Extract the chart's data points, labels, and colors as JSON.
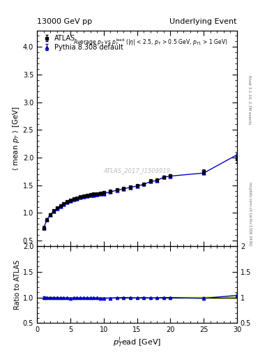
{
  "title_left": "13000 GeV pp",
  "title_right": "Underlying Event",
  "watermark": "ATLAS_2017_I1509919",
  "right_label": "mcplots.cern.ch [arXiv:1306.3436]",
  "rivet_label": "Rivet 3.1.10, 2.3M events",
  "ylabel_main": "$\\langle$ mean $p_T$ $\\rangle$ [GeV]",
  "ylabel_ratio": "Ratio to ATLAS",
  "xlabel": "$p_T^l$ead [GeV]",
  "ylim_main": [
    0.4,
    4.3
  ],
  "ylim_ratio": [
    0.5,
    2.0
  ],
  "xlim": [
    0,
    30
  ],
  "yticks_main": [
    0.5,
    1.0,
    1.5,
    2.0,
    2.5,
    3.0,
    3.5,
    4.0
  ],
  "yticks_ratio": [
    0.5,
    1.0,
    1.5,
    2.0
  ],
  "xticks": [
    0,
    5,
    10,
    15,
    20,
    25,
    30
  ],
  "data_x": [
    1.0,
    1.5,
    2.0,
    2.5,
    3.0,
    3.5,
    4.0,
    4.5,
    5.0,
    5.5,
    6.0,
    6.5,
    7.0,
    7.5,
    8.0,
    8.5,
    9.0,
    9.5,
    10.0,
    11.0,
    12.0,
    13.0,
    14.0,
    15.0,
    16.0,
    17.0,
    18.0,
    19.0,
    20.0,
    25.0,
    30.0
  ],
  "data_y": [
    0.73,
    0.88,
    0.97,
    1.04,
    1.09,
    1.13,
    1.17,
    1.2,
    1.23,
    1.25,
    1.27,
    1.29,
    1.3,
    1.32,
    1.33,
    1.34,
    1.35,
    1.36,
    1.37,
    1.4,
    1.42,
    1.44,
    1.47,
    1.5,
    1.52,
    1.58,
    1.6,
    1.65,
    1.67,
    1.75,
    1.97
  ],
  "data_yerr": [
    0.03,
    0.025,
    0.02,
    0.02,
    0.015,
    0.012,
    0.01,
    0.01,
    0.01,
    0.01,
    0.008,
    0.008,
    0.008,
    0.008,
    0.008,
    0.008,
    0.008,
    0.008,
    0.008,
    0.008,
    0.008,
    0.01,
    0.01,
    0.01,
    0.01,
    0.015,
    0.015,
    0.02,
    0.025,
    0.04,
    0.06
  ],
  "mc_x": [
    1.0,
    1.5,
    2.0,
    2.5,
    3.0,
    3.5,
    4.0,
    4.5,
    5.0,
    5.5,
    6.0,
    6.5,
    7.0,
    7.5,
    8.0,
    8.5,
    9.0,
    9.5,
    10.0,
    11.0,
    12.0,
    13.0,
    14.0,
    15.0,
    16.0,
    17.0,
    18.0,
    19.0,
    20.0,
    25.0,
    30.0
  ],
  "mc_y": [
    0.73,
    0.875,
    0.965,
    1.03,
    1.08,
    1.12,
    1.16,
    1.19,
    1.215,
    1.24,
    1.26,
    1.275,
    1.29,
    1.305,
    1.315,
    1.325,
    1.335,
    1.34,
    1.35,
    1.38,
    1.41,
    1.435,
    1.46,
    1.485,
    1.515,
    1.565,
    1.585,
    1.645,
    1.665,
    1.72,
    2.05
  ],
  "mc_yerr": [
    0.008,
    0.006,
    0.005,
    0.005,
    0.004,
    0.004,
    0.003,
    0.003,
    0.003,
    0.003,
    0.003,
    0.003,
    0.003,
    0.003,
    0.003,
    0.003,
    0.003,
    0.003,
    0.003,
    0.003,
    0.003,
    0.003,
    0.003,
    0.003,
    0.003,
    0.004,
    0.004,
    0.005,
    0.006,
    0.012,
    0.025
  ],
  "ratio_y": [
    1.0,
    0.994,
    0.995,
    0.99,
    0.991,
    0.991,
    0.991,
    0.992,
    0.985,
    0.992,
    0.992,
    0.988,
    0.992,
    0.989,
    0.988,
    0.991,
    0.989,
    0.985,
    0.985,
    0.986,
    0.993,
    0.997,
    0.993,
    0.99,
    0.997,
    0.99,
    0.991,
    0.997,
    0.997,
    0.983,
    1.04
  ],
  "ratio_yerr": [
    0.018,
    0.014,
    0.012,
    0.011,
    0.01,
    0.009,
    0.008,
    0.008,
    0.008,
    0.008,
    0.007,
    0.007,
    0.007,
    0.007,
    0.007,
    0.007,
    0.007,
    0.007,
    0.007,
    0.007,
    0.007,
    0.008,
    0.008,
    0.008,
    0.008,
    0.009,
    0.009,
    0.011,
    0.013,
    0.022,
    0.038
  ],
  "mc_color": "#0000cc",
  "data_color": "#000000",
  "band_color_green": "#aadd88",
  "band_color_yellow": "#eeee44",
  "bg_color": "#ffffff"
}
